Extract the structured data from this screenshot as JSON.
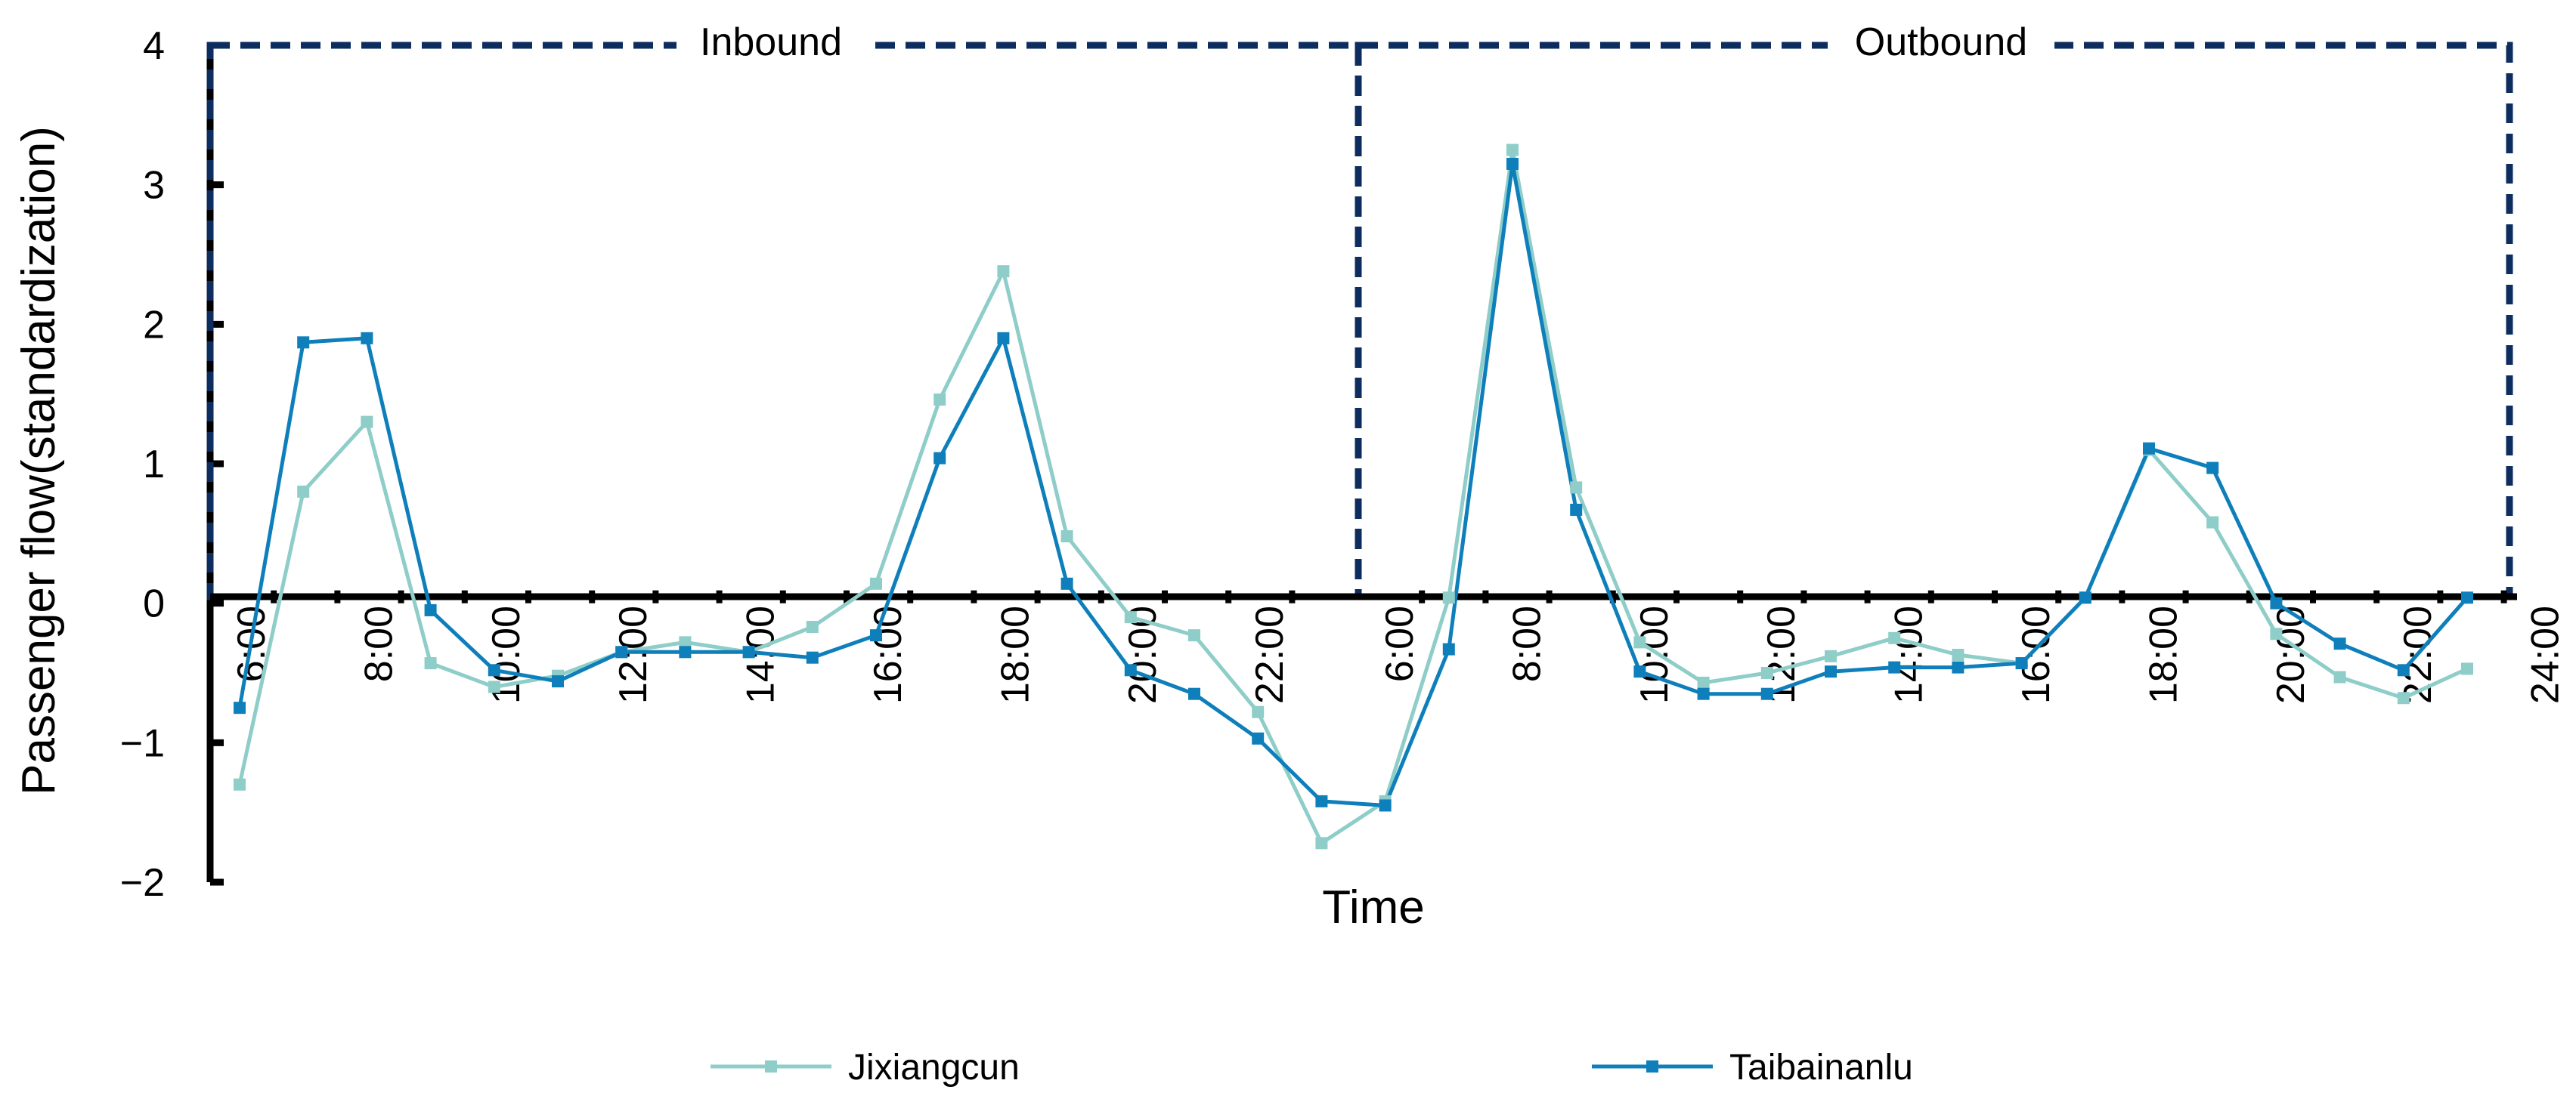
{
  "chart_data": {
    "type": "line",
    "title": "",
    "xlabel": "Time",
    "ylabel": "Passenger flow(standardization)",
    "ylim": [
      -2,
      4
    ],
    "yticks": [
      "4",
      "3",
      "2",
      "1",
      "0",
      "−1",
      "−2"
    ],
    "panels": [
      {
        "name": "Inbound",
        "tick_labels": [
          "6:00",
          "8:00",
          "10:00",
          "12:00",
          "14:00",
          "16:00",
          "18:00",
          "20:00",
          "22:00"
        ]
      },
      {
        "name": "Outbound",
        "tick_labels": [
          "6:00",
          "8:00",
          "10:00",
          "12:00",
          "14:00",
          "16:00",
          "18:00",
          "20:00",
          "22:00",
          "24:00"
        ]
      }
    ],
    "x": [
      "6:00",
      "7:00",
      "8:00",
      "9:00",
      "10:00",
      "11:00",
      "12:00",
      "13:00",
      "14:00",
      "15:00",
      "16:00",
      "17:00",
      "18:00",
      "19:00",
      "20:00",
      "21:00",
      "22:00",
      "23:00",
      "6:00",
      "7:00",
      "8:00",
      "9:00",
      "10:00",
      "11:00",
      "12:00",
      "13:00",
      "14:00",
      "15:00",
      "16:00",
      "17:00",
      "18:00",
      "19:00",
      "20:00",
      "21:00",
      "22:00",
      "23:00"
    ],
    "series": [
      {
        "name": "Jixiangcun",
        "color": "#8ecdc8",
        "values": [
          -1.3,
          0.8,
          1.3,
          -0.43,
          -0.6,
          -0.52,
          -0.35,
          -0.28,
          -0.35,
          -0.17,
          0.14,
          1.46,
          2.38,
          0.48,
          -0.1,
          -0.23,
          -0.78,
          -1.72,
          -1.42,
          0.04,
          3.25,
          0.83,
          -0.28,
          -0.57,
          -0.5,
          -0.38,
          -0.25,
          -0.37,
          -0.43,
          0.04,
          1.1,
          0.58,
          -0.22,
          -0.53,
          -0.68,
          -0.47
        ]
      },
      {
        "name": "Taibainanlu",
        "color": "#0e7fba",
        "values": [
          -0.75,
          1.87,
          1.9,
          -0.05,
          -0.48,
          -0.56,
          -0.35,
          -0.35,
          -0.35,
          -0.39,
          -0.23,
          1.04,
          1.9,
          0.14,
          -0.48,
          -0.65,
          -0.97,
          -1.42,
          -1.45,
          -0.33,
          3.15,
          0.67,
          -0.49,
          -0.65,
          -0.65,
          -0.49,
          -0.46,
          -0.46,
          -0.43,
          0.04,
          1.11,
          0.97,
          0.0,
          -0.29,
          -0.48,
          0.04
        ]
      }
    ],
    "legend_position": "bottom"
  }
}
